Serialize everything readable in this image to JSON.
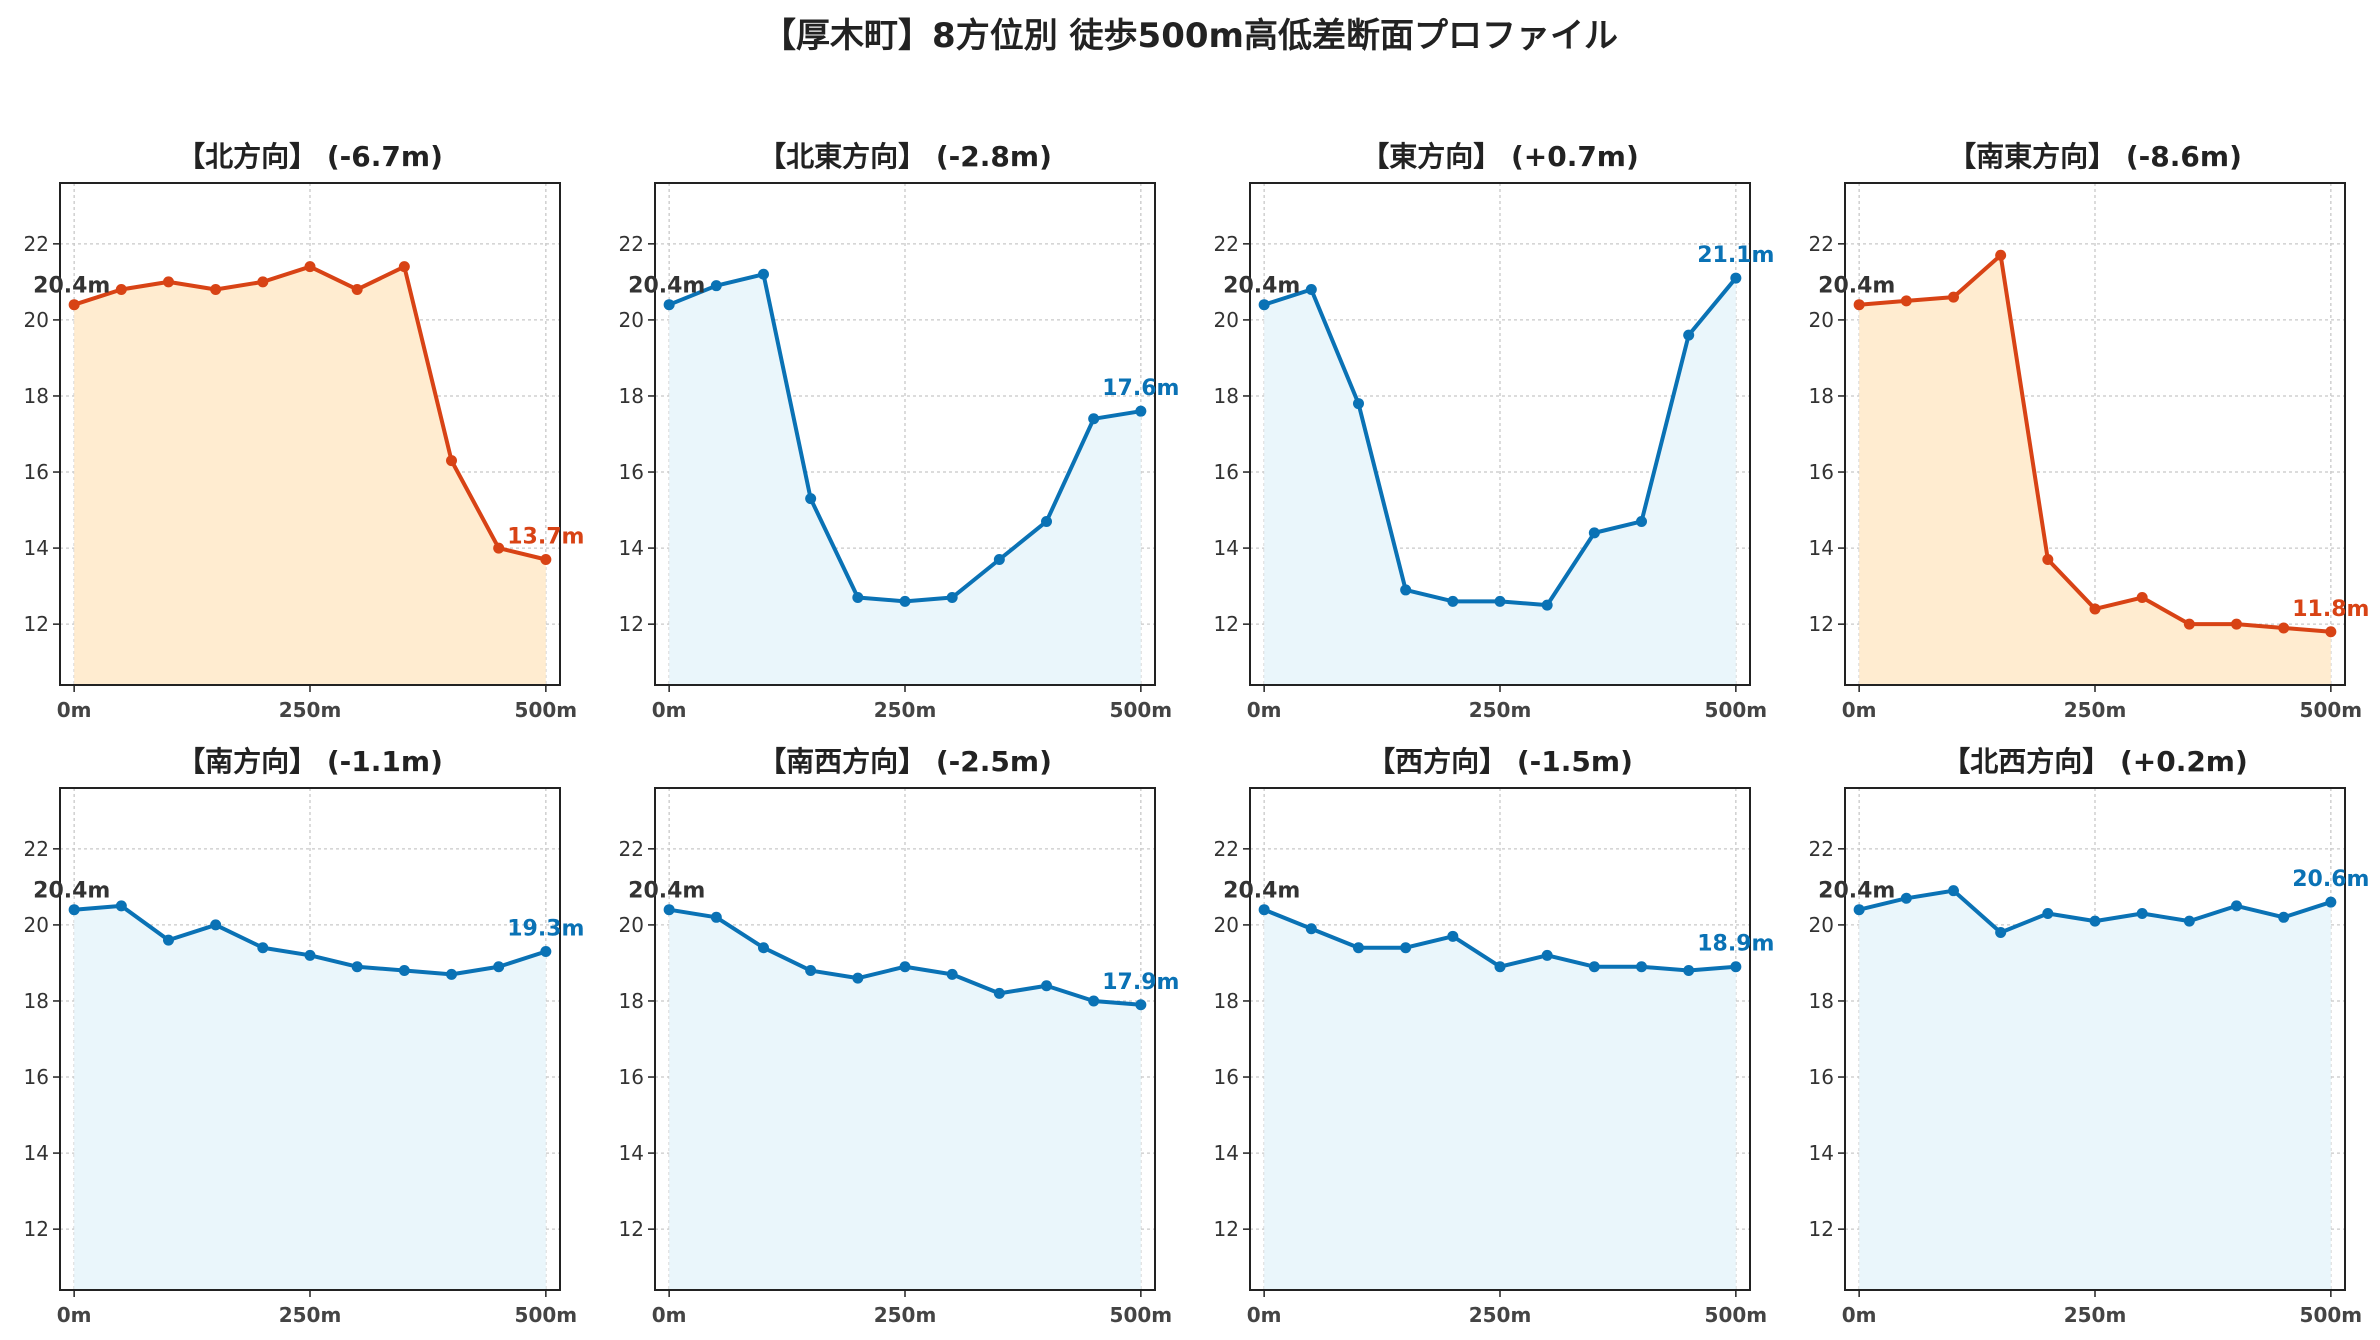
{
  "title": "【厚木町】8方位別 徒歩500m高低差断面プロファイル",
  "colors": {
    "down_line": "#d84315",
    "down_fill": "#ffecd0",
    "up_line": "#0a72b5",
    "up_fill": "#eaf6fb",
    "start_label": "#333333"
  },
  "chart_data": [
    {
      "type": "line",
      "title": "【北方向】 (-6.7m)",
      "trend": "down",
      "x": [
        0,
        50,
        100,
        150,
        200,
        250,
        300,
        350,
        400,
        450,
        500
      ],
      "y": [
        20.4,
        20.8,
        21.0,
        20.8,
        21.0,
        21.4,
        20.8,
        21.4,
        16.3,
        14.0,
        13.7
      ],
      "xticks": [
        "0m",
        "250m",
        "500m"
      ],
      "yticks": [
        12,
        14,
        16,
        18,
        20,
        22
      ],
      "ylim": [
        10.4,
        23.6
      ],
      "xlim": [
        -15,
        515
      ],
      "start_label": "20.4m",
      "end_label": "13.7m",
      "grid": true
    },
    {
      "type": "line",
      "title": "【北東方向】 (-2.8m)",
      "trend": "up",
      "x": [
        0,
        50,
        100,
        150,
        200,
        250,
        300,
        350,
        400,
        450,
        500
      ],
      "y": [
        20.4,
        20.9,
        21.2,
        15.3,
        12.7,
        12.6,
        12.7,
        13.7,
        14.7,
        17.4,
        17.6
      ],
      "xticks": [
        "0m",
        "250m",
        "500m"
      ],
      "yticks": [
        12,
        14,
        16,
        18,
        20,
        22
      ],
      "ylim": [
        10.4,
        23.6
      ],
      "xlim": [
        -15,
        515
      ],
      "start_label": "20.4m",
      "end_label": "17.6m",
      "grid": true
    },
    {
      "type": "line",
      "title": "【東方向】 (+0.7m)",
      "trend": "up",
      "x": [
        0,
        50,
        100,
        150,
        200,
        250,
        300,
        350,
        400,
        450,
        500
      ],
      "y": [
        20.4,
        20.8,
        17.8,
        12.9,
        12.6,
        12.6,
        12.5,
        14.4,
        14.7,
        19.6,
        21.1
      ],
      "xticks": [
        "0m",
        "250m",
        "500m"
      ],
      "yticks": [
        12,
        14,
        16,
        18,
        20,
        22
      ],
      "ylim": [
        10.4,
        23.6
      ],
      "xlim": [
        -15,
        515
      ],
      "start_label": "20.4m",
      "end_label": "21.1m",
      "grid": true
    },
    {
      "type": "line",
      "title": "【南東方向】 (-8.6m)",
      "trend": "down",
      "x": [
        0,
        50,
        100,
        150,
        200,
        250,
        300,
        350,
        400,
        450,
        500
      ],
      "y": [
        20.4,
        20.5,
        20.6,
        21.7,
        13.7,
        12.4,
        12.7,
        12.0,
        12.0,
        11.9,
        11.8
      ],
      "xticks": [
        "0m",
        "250m",
        "500m"
      ],
      "yticks": [
        12,
        14,
        16,
        18,
        20,
        22
      ],
      "ylim": [
        10.4,
        23.6
      ],
      "xlim": [
        -15,
        515
      ],
      "start_label": "20.4m",
      "end_label": "11.8m",
      "grid": true
    },
    {
      "type": "line",
      "title": "【南方向】 (-1.1m)",
      "trend": "up",
      "x": [
        0,
        50,
        100,
        150,
        200,
        250,
        300,
        350,
        400,
        450,
        500
      ],
      "y": [
        20.4,
        20.5,
        19.6,
        20.0,
        19.4,
        19.2,
        18.9,
        18.8,
        18.7,
        18.9,
        19.3
      ],
      "xticks": [
        "0m",
        "250m",
        "500m"
      ],
      "yticks": [
        12,
        14,
        16,
        18,
        20,
        22
      ],
      "ylim": [
        10.4,
        23.6
      ],
      "xlim": [
        -15,
        515
      ],
      "start_label": "20.4m",
      "end_label": "19.3m",
      "grid": true
    },
    {
      "type": "line",
      "title": "【南西方向】 (-2.5m)",
      "trend": "up",
      "x": [
        0,
        50,
        100,
        150,
        200,
        250,
        300,
        350,
        400,
        450,
        500
      ],
      "y": [
        20.4,
        20.2,
        19.4,
        18.8,
        18.6,
        18.9,
        18.7,
        18.2,
        18.4,
        18.0,
        17.9
      ],
      "xticks": [
        "0m",
        "250m",
        "500m"
      ],
      "yticks": [
        12,
        14,
        16,
        18,
        20,
        22
      ],
      "ylim": [
        10.4,
        23.6
      ],
      "xlim": [
        -15,
        515
      ],
      "start_label": "20.4m",
      "end_label": "17.9m",
      "grid": true
    },
    {
      "type": "line",
      "title": "【西方向】 (-1.5m)",
      "trend": "up",
      "x": [
        0,
        50,
        100,
        150,
        200,
        250,
        300,
        350,
        400,
        450,
        500
      ],
      "y": [
        20.4,
        19.9,
        19.4,
        19.4,
        19.7,
        18.9,
        19.2,
        18.9,
        18.9,
        18.8,
        18.9
      ],
      "xticks": [
        "0m",
        "250m",
        "500m"
      ],
      "yticks": [
        12,
        14,
        16,
        18,
        20,
        22
      ],
      "ylim": [
        10.4,
        23.6
      ],
      "xlim": [
        -15,
        515
      ],
      "start_label": "20.4m",
      "end_label": "18.9m",
      "grid": true
    },
    {
      "type": "line",
      "title": "【北西方向】 (+0.2m)",
      "trend": "up",
      "x": [
        0,
        50,
        100,
        150,
        200,
        250,
        300,
        350,
        400,
        450,
        500
      ],
      "y": [
        20.4,
        20.7,
        20.9,
        19.8,
        20.3,
        20.1,
        20.3,
        20.1,
        20.5,
        20.2,
        20.6
      ],
      "xticks": [
        "0m",
        "250m",
        "500m"
      ],
      "yticks": [
        12,
        14,
        16,
        18,
        20,
        22
      ],
      "ylim": [
        10.4,
        23.6
      ],
      "xlim": [
        -15,
        515
      ],
      "start_label": "20.4m",
      "end_label": "20.6m",
      "grid": true
    }
  ]
}
